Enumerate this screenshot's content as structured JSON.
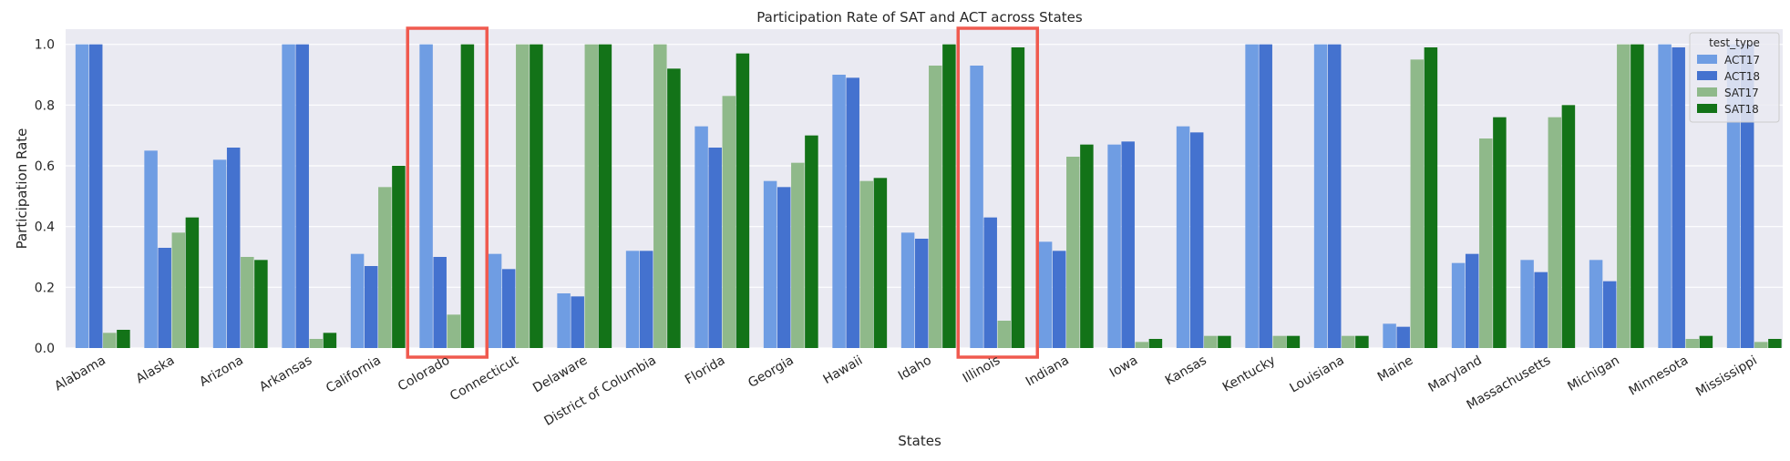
{
  "chart_data": {
    "type": "bar",
    "title": "Participation Rate of SAT and ACT across States",
    "xlabel": "States",
    "ylabel": "Participation Rate",
    "ylim": [
      0,
      1.05
    ],
    "yticks": [
      "0.0",
      "0.2",
      "0.4",
      "0.6",
      "0.8",
      "1.0"
    ],
    "grid": true,
    "legend": {
      "title": "test_type",
      "placement": "top-right"
    },
    "categories": [
      "Alabama",
      "Alaska",
      "Arizona",
      "Arkansas",
      "California",
      "Colorado",
      "Connecticut",
      "Delaware",
      "District of Columbia",
      "Florida",
      "Georgia",
      "Hawaii",
      "Idaho",
      "Illinois",
      "Indiana",
      "Iowa",
      "Kansas",
      "Kentucky",
      "Louisiana",
      "Maine",
      "Maryland",
      "Massachusetts",
      "Michigan",
      "Minnesota",
      "Mississippi"
    ],
    "highlighted": [
      "Colorado",
      "Illinois"
    ],
    "highlight_color": "#f05a4f",
    "series": [
      {
        "name": "ACT17",
        "color": "#6f9de3",
        "values": [
          1.0,
          0.65,
          0.62,
          1.0,
          0.31,
          1.0,
          0.31,
          0.18,
          0.32,
          0.73,
          0.55,
          0.9,
          0.38,
          0.93,
          0.35,
          0.67,
          0.73,
          1.0,
          1.0,
          0.08,
          0.28,
          0.29,
          0.29,
          1.0,
          1.0
        ]
      },
      {
        "name": "ACT18",
        "color": "#4472cf",
        "values": [
          1.0,
          0.33,
          0.66,
          1.0,
          0.27,
          0.3,
          0.26,
          0.17,
          0.32,
          0.66,
          0.53,
          0.89,
          0.36,
          0.43,
          0.32,
          0.68,
          0.71,
          1.0,
          1.0,
          0.07,
          0.31,
          0.25,
          0.22,
          0.99,
          1.0
        ]
      },
      {
        "name": "SAT17",
        "color": "#8fb98a",
        "values": [
          0.05,
          0.38,
          0.3,
          0.03,
          0.53,
          0.11,
          1.0,
          1.0,
          1.0,
          0.83,
          0.61,
          0.55,
          0.93,
          0.09,
          0.63,
          0.02,
          0.04,
          0.04,
          0.04,
          0.95,
          0.69,
          0.76,
          1.0,
          0.03,
          0.02
        ]
      },
      {
        "name": "SAT18",
        "color": "#137318",
        "values": [
          0.06,
          0.43,
          0.29,
          0.05,
          0.6,
          1.0,
          1.0,
          1.0,
          0.92,
          0.97,
          0.7,
          0.56,
          1.0,
          0.99,
          0.67,
          0.03,
          0.04,
          0.04,
          0.04,
          0.99,
          0.76,
          0.8,
          1.0,
          0.04,
          0.03
        ]
      }
    ]
  }
}
